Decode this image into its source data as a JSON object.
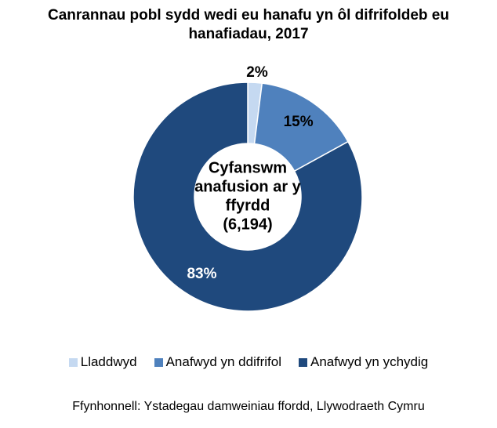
{
  "chart_data": {
    "type": "pie",
    "title_lines": [
      "Canrannau pobl sydd wedi eu hanafu yn ôl difrifoldeb eu",
      "hanafiadau, 2017"
    ],
    "center_label_lines": [
      "Cyfanswm",
      "anafusion ar y",
      "ffyrdd",
      "(6,194)"
    ],
    "slices": [
      {
        "name": "Lladdwyd",
        "value": 2,
        "label": "2%",
        "color": "#c5d9f1"
      },
      {
        "name": "Anafwyd yn ddifrifol",
        "value": 15,
        "label": "15%",
        "color": "#4f81bd"
      },
      {
        "name": "Anafwyd yn ychydig",
        "value": 83,
        "label": "83%",
        "color": "#1f497d"
      }
    ],
    "legend_position": "bottom",
    "source": "Ffynhonnell: Ystadegau damweiniau ffordd, Llywodraeth Cymru"
  }
}
